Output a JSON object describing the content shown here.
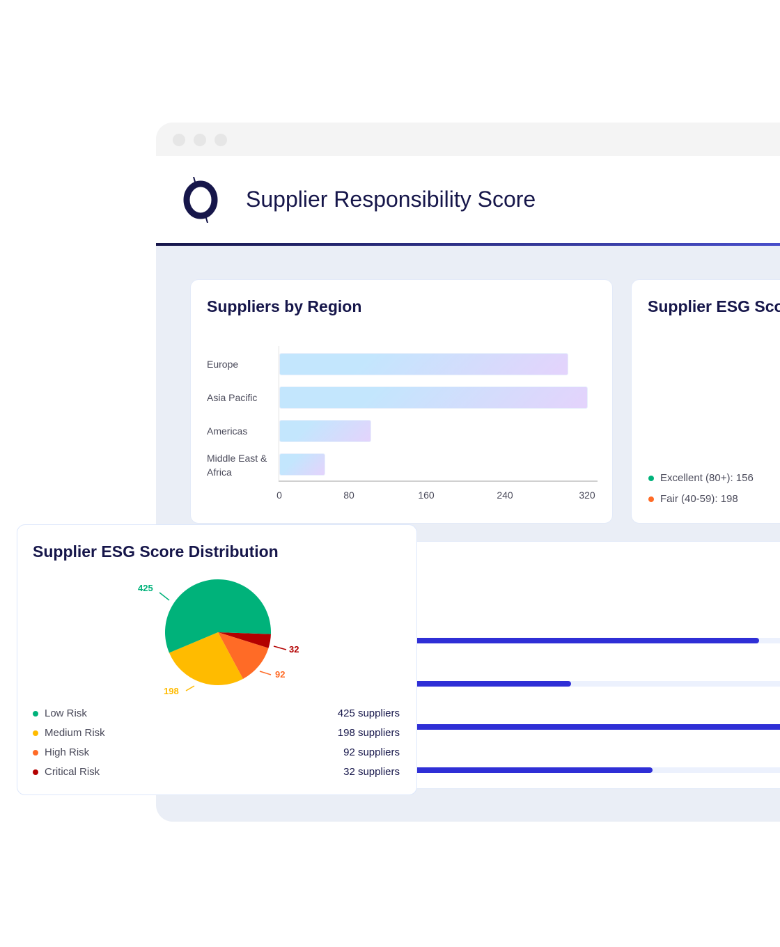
{
  "window": {
    "title": "Supplier Responsibility Score"
  },
  "region_card": {
    "title": "Suppliers by Region"
  },
  "esg_card_back": {
    "title": "Supplier ESG Score Distribution",
    "legend": [
      {
        "label": "Excellent (80+): 156",
        "color": "#00b27a"
      },
      {
        "label": "Fair (40-59): 198",
        "color": "#ff6b26"
      }
    ]
  },
  "progress": {
    "values": [
      0.95,
      0.65,
      1.0,
      0.78
    ]
  },
  "esg_card": {
    "title": "Supplier ESG Score Distribution",
    "legend": [
      {
        "label": "Low Risk",
        "value": "425 suppliers",
        "color": "#00b27a"
      },
      {
        "label": "Medium Risk",
        "value": "198 suppliers",
        "color": "#ffbb00"
      },
      {
        "label": "High Risk",
        "value": "92 suppliers",
        "color": "#ff6b26"
      },
      {
        "label": "Critical Risk",
        "value": "32 suppliers",
        "color": "#b30000"
      }
    ]
  },
  "chart_data": [
    {
      "type": "bar",
      "orientation": "horizontal",
      "title": "Suppliers by Region",
      "categories": [
        "Europe",
        "Asia Pacific",
        "Americas",
        "Middle East & Africa"
      ],
      "values": [
        300,
        320,
        95,
        48
      ],
      "xticks": [
        "0",
        "80",
        "160",
        "240",
        "320"
      ],
      "xlim": [
        0,
        320
      ]
    },
    {
      "type": "pie",
      "title": "Supplier ESG Score Distribution",
      "categories": [
        "Critical Risk",
        "High Risk",
        "Medium Risk",
        "Low Risk"
      ],
      "values": [
        32,
        92,
        198,
        425
      ],
      "labels": [
        "32",
        "92",
        "198",
        "425"
      ],
      "colors": [
        "#b30000",
        "#ff6b26",
        "#ffbb00",
        "#00b27a"
      ]
    }
  ]
}
